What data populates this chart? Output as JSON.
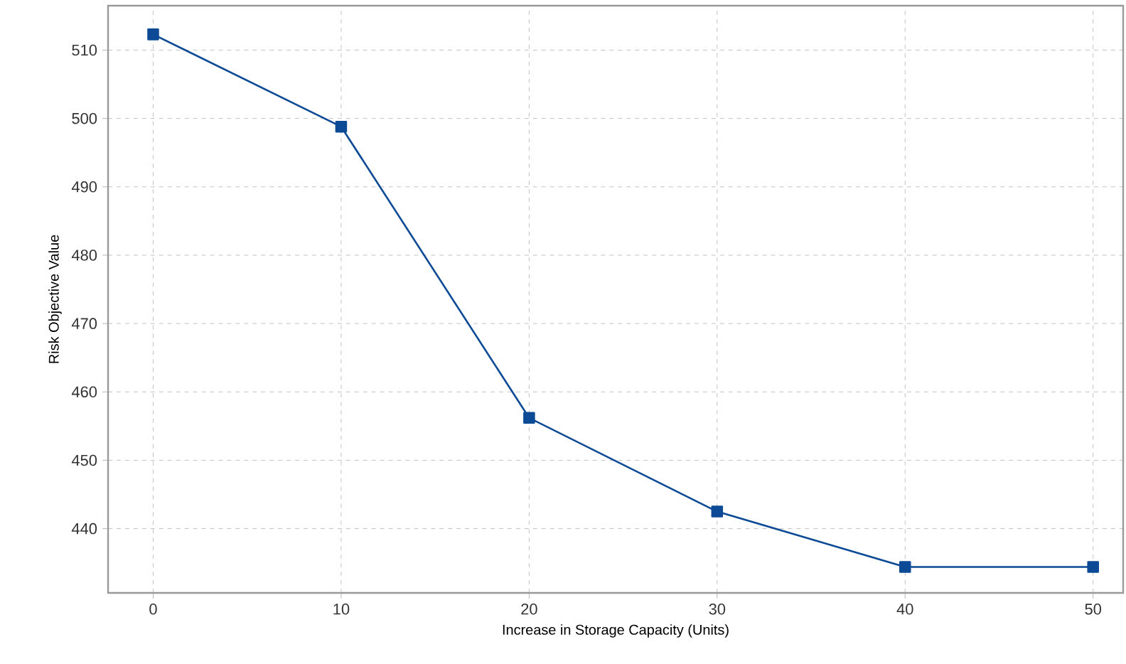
{
  "chart_data": {
    "type": "line",
    "xlabel": "Increase in Storage Capacity (Units)",
    "ylabel": "Risk Objective Value",
    "x": [
      0,
      10,
      20,
      30,
      40,
      50
    ],
    "series": [
      {
        "color": "#0d4a96",
        "values": [
          512.3,
          498.8,
          456.2,
          442.5,
          434.4,
          434.4
        ]
      }
    ],
    "xlim": [
      -2.4,
      51.6
    ],
    "ylim": [
      430.6,
      516.5
    ],
    "xticks": [
      0,
      10,
      20,
      30,
      40,
      50
    ],
    "yticks": [
      440,
      450,
      460,
      470,
      480,
      490,
      500,
      510
    ],
    "grid": true,
    "marker": "square",
    "line_style": "solid"
  }
}
